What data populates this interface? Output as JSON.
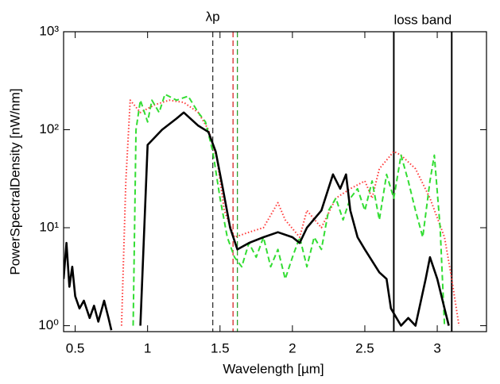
{
  "chart_data": {
    "type": "line",
    "xlabel": "Wavelength [µm]",
    "ylabel": "PowerSpectralDensity [nW/nm]",
    "annotations": [
      "λp",
      "loss band"
    ],
    "xlim": [
      0.42,
      3.34
    ],
    "xticks": [
      0.5,
      1,
      1.5,
      2,
      2.5,
      3
    ],
    "ylim": [
      0.87,
      1000
    ],
    "log_y": true,
    "yticks": [
      {
        "value": 1,
        "label": "10⁰"
      },
      {
        "value": 10,
        "label": "10¹"
      },
      {
        "value": 100,
        "label": "10²"
      },
      {
        "value": 1000,
        "label": "10³"
      }
    ],
    "vlines": [
      {
        "x": 1.45,
        "color": "#333333",
        "style": "dashed"
      },
      {
        "x": 1.59,
        "color": "#d62728",
        "style": "dashed"
      },
      {
        "x": 1.62,
        "color": "#2ca02c",
        "style": "dashed"
      },
      {
        "x": 2.7,
        "color": "#000000",
        "style": "solid"
      },
      {
        "x": 3.1,
        "color": "#000000",
        "style": "solid"
      }
    ],
    "series": [
      {
        "color": "#ff3b3b",
        "style": "dotted",
        "x": [
          0.82,
          0.85,
          0.88,
          0.95,
          1.05,
          1.15,
          1.25,
          1.35,
          1.42,
          1.48,
          1.53,
          1.6,
          1.7,
          1.8,
          1.9,
          1.95,
          2.05,
          2.1,
          2.2,
          2.3,
          2.4,
          2.5,
          2.55,
          2.6,
          2.7,
          2.75,
          2.85,
          2.95,
          3.05,
          3.1,
          3.15
        ],
        "values": [
          1,
          30,
          200,
          150,
          180,
          200,
          190,
          150,
          100,
          50,
          15,
          8,
          9,
          10,
          18,
          12,
          8,
          15,
          10,
          20,
          25,
          30,
          20,
          40,
          60,
          55,
          40,
          20,
          8,
          3,
          1
        ]
      },
      {
        "color": "#33dd33",
        "style": "dashed",
        "x": [
          0.9,
          0.92,
          0.95,
          1.0,
          1.03,
          1.08,
          1.12,
          1.2,
          1.28,
          1.35,
          1.4,
          1.45,
          1.5,
          1.55,
          1.6,
          1.65,
          1.7,
          1.75,
          1.8,
          1.85,
          1.9,
          1.95,
          2.0,
          2.05,
          2.1,
          2.15,
          2.2,
          2.25,
          2.3,
          2.35,
          2.4,
          2.45,
          2.5,
          2.55,
          2.6,
          2.65,
          2.7,
          2.75,
          2.8,
          2.85,
          2.9,
          2.95,
          2.98,
          3.02,
          3.05
        ],
        "values": [
          1,
          100,
          200,
          120,
          200,
          150,
          230,
          200,
          220,
          150,
          120,
          60,
          20,
          8,
          5,
          4,
          7,
          5,
          8,
          4,
          6,
          3,
          5,
          8,
          4,
          8,
          6,
          15,
          20,
          12,
          20,
          25,
          15,
          30,
          12,
          35,
          20,
          55,
          30,
          15,
          8,
          30,
          55,
          10,
          1
        ]
      },
      {
        "color": "#000000",
        "style": "solid",
        "x": [
          0.42,
          0.44,
          0.46,
          0.48,
          0.5,
          0.53,
          0.56,
          0.6,
          0.63,
          0.66,
          0.7,
          0.73,
          0.75,
          0.85,
          0.95,
          1.0,
          1.1,
          1.2,
          1.25,
          1.35,
          1.42,
          1.47,
          1.52,
          1.57,
          1.62,
          1.7,
          1.8,
          1.9,
          2.0,
          2.05,
          2.1,
          2.2,
          2.28,
          2.33,
          2.37,
          2.4,
          2.45,
          2.5,
          2.6,
          2.65,
          2.68,
          2.75,
          2.8,
          2.85,
          2.92,
          2.95,
          3.0,
          3.05,
          3.08
        ],
        "values": [
          3,
          7,
          2.5,
          4,
          2,
          1.5,
          1.8,
          1.2,
          1.6,
          1.1,
          1.8,
          1.2,
          0.9,
          null,
          1,
          70,
          100,
          130,
          150,
          110,
          95,
          60,
          25,
          10,
          6,
          7,
          8,
          9,
          8,
          7,
          10,
          15,
          35,
          25,
          35,
          15,
          8,
          6,
          3.5,
          3,
          1.5,
          1,
          1.2,
          1,
          3,
          5,
          3,
          1.5,
          1
        ]
      }
    ]
  }
}
